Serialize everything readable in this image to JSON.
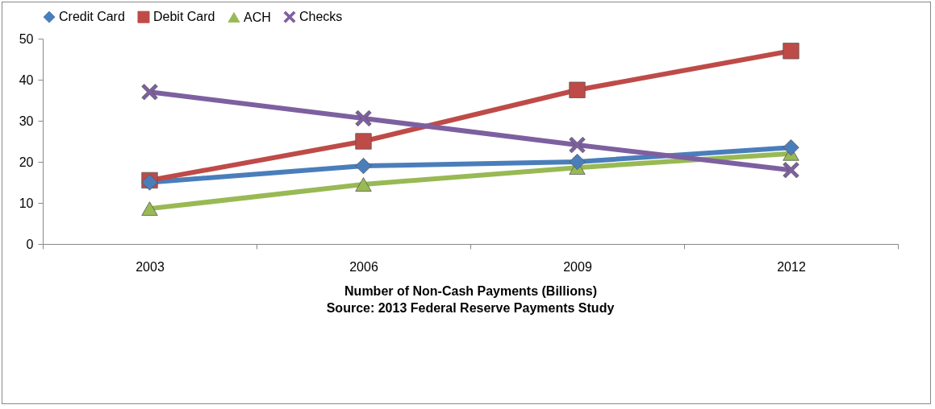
{
  "chart_data": {
    "type": "line",
    "xlabel": "Number of Non-Cash Payments (Billions)",
    "annotations": [
      "Source: 2013 Federal Reserve Payments Study"
    ],
    "categories": [
      "2003",
      "2006",
      "2009",
      "2012"
    ],
    "series": [
      {
        "name": "Credit Card",
        "color": "#4a7ebb",
        "marker": "diamond",
        "values": [
          15,
          19,
          20,
          23.5
        ]
      },
      {
        "name": "Debit Card",
        "color": "#be4b48",
        "marker": "square",
        "values": [
          15.5,
          25,
          37.5,
          47
        ]
      },
      {
        "name": "ACH",
        "color": "#98b954",
        "marker": "triangle",
        "values": [
          8.6,
          14.5,
          18.6,
          22
        ]
      },
      {
        "name": "Checks",
        "color": "#7d60a0",
        "marker": "cross",
        "values": [
          37,
          30.6,
          24.1,
          18
        ]
      }
    ],
    "ylim": [
      0,
      50
    ],
    "yticks": [
      0,
      10,
      20,
      30,
      40,
      50
    ],
    "grid": false,
    "legend": "top",
    "line_style": "solid"
  }
}
